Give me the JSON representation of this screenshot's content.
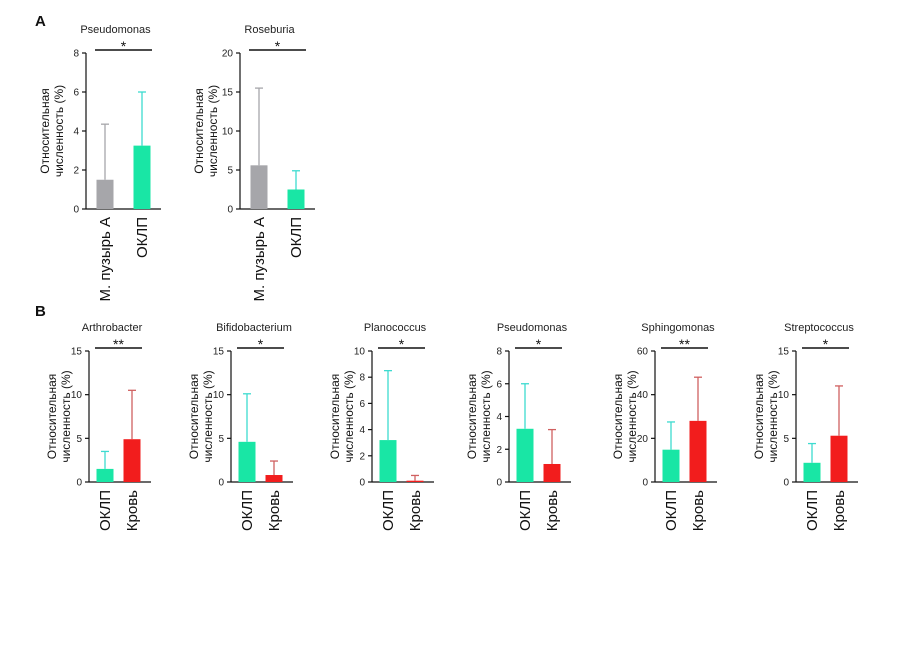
{
  "panels": [
    "A",
    "B"
  ],
  "chart_data": [
    {
      "type": "bar",
      "panel": "A",
      "title": "Pseudomonas",
      "ylabel": "Относительная численность (%)",
      "categories": [
        "М. пузырь А",
        "ОКЛП"
      ],
      "values": [
        1.5,
        3.25
      ],
      "errors": [
        4.35,
        6.0
      ],
      "colors": [
        "#a6a6aa",
        "#19e6a5"
      ],
      "error_colors": [
        "#a6a6aa",
        "#3ddbd0"
      ],
      "ylim": [
        0,
        8
      ],
      "yticks": [
        0,
        2,
        4,
        6,
        8
      ],
      "significance": "*",
      "grid": false
    },
    {
      "type": "bar",
      "panel": "A",
      "title": "Roseburia",
      "ylabel": "Относительная численность (%)",
      "categories": [
        "М. пузырь А",
        "ОКЛП"
      ],
      "values": [
        5.6,
        2.5
      ],
      "errors": [
        15.5,
        4.9
      ],
      "colors": [
        "#a6a6aa",
        "#19e6a5"
      ],
      "error_colors": [
        "#a6a6aa",
        "#3ddbd0"
      ],
      "ylim": [
        0,
        20
      ],
      "yticks": [
        0,
        5,
        10,
        15,
        20
      ],
      "significance": "*",
      "grid": false
    },
    {
      "type": "bar",
      "panel": "B",
      "title": "Arthrobacter",
      "ylabel": "Относительная численность (%)",
      "categories": [
        "ОКЛП",
        "Кровь"
      ],
      "values": [
        1.5,
        4.9
      ],
      "errors": [
        3.5,
        10.5
      ],
      "colors": [
        "#19e6a5",
        "#f21d1d"
      ],
      "error_colors": [
        "#3ddbd0",
        "#d06060"
      ],
      "ylim": [
        0,
        15
      ],
      "yticks": [
        0,
        5,
        10,
        15
      ],
      "significance": "**",
      "grid": false
    },
    {
      "type": "bar",
      "panel": "B",
      "title": "Bifidobacterium",
      "ylabel": "Относительная численность (%)",
      "categories": [
        "ОКЛП",
        "Кровь"
      ],
      "values": [
        4.6,
        0.8
      ],
      "errors": [
        10.1,
        2.4
      ],
      "colors": [
        "#19e6a5",
        "#f21d1d"
      ],
      "error_colors": [
        "#3ddbd0",
        "#d06060"
      ],
      "ylim": [
        0,
        15
      ],
      "yticks": [
        0,
        5,
        10,
        15
      ],
      "significance": "*",
      "grid": false
    },
    {
      "type": "bar",
      "panel": "B",
      "title": "Planococcus",
      "ylabel": "Относительная численность (%)",
      "categories": [
        "ОКЛП",
        "Кровь"
      ],
      "values": [
        3.2,
        0.1
      ],
      "errors": [
        8.5,
        0.5
      ],
      "colors": [
        "#19e6a5",
        "#f21d1d"
      ],
      "error_colors": [
        "#3ddbd0",
        "#d06060"
      ],
      "ylim": [
        0,
        10
      ],
      "yticks": [
        0,
        2,
        4,
        6,
        8,
        10
      ],
      "significance": "*",
      "grid": false
    },
    {
      "type": "bar",
      "panel": "B",
      "title": "Pseudomonas",
      "ylabel": "Относительная численность (%)",
      "categories": [
        "ОКЛП",
        "Кровь"
      ],
      "values": [
        3.25,
        1.1
      ],
      "errors": [
        6.0,
        3.2
      ],
      "colors": [
        "#19e6a5",
        "#f21d1d"
      ],
      "error_colors": [
        "#3ddbd0",
        "#d06060"
      ],
      "ylim": [
        0,
        8
      ],
      "yticks": [
        0,
        2,
        4,
        6,
        8
      ],
      "significance": "*",
      "grid": false
    },
    {
      "type": "bar",
      "panel": "B",
      "title": "Sphingomonas",
      "ylabel": "Относительная численность (%)",
      "categories": [
        "ОКЛП",
        "Кровь"
      ],
      "values": [
        14.8,
        28.0
      ],
      "errors": [
        27.5,
        48.0
      ],
      "colors": [
        "#19e6a5",
        "#f21d1d"
      ],
      "error_colors": [
        "#3ddbd0",
        "#d06060"
      ],
      "ylim": [
        0,
        60
      ],
      "yticks": [
        0,
        20,
        40,
        60
      ],
      "significance": "**",
      "grid": false
    },
    {
      "type": "bar",
      "panel": "B",
      "title": "Streptococcus",
      "ylabel": "Относительная численность (%)",
      "categories": [
        "ОКЛП",
        "Кровь"
      ],
      "values": [
        2.2,
        5.3
      ],
      "errors": [
        4.4,
        11.0
      ],
      "colors": [
        "#19e6a5",
        "#f21d1d"
      ],
      "error_colors": [
        "#3ddbd0",
        "#d06060"
      ],
      "ylim": [
        0,
        15
      ],
      "yticks": [
        0,
        5,
        10,
        15
      ],
      "significance": "*",
      "grid": false
    }
  ]
}
